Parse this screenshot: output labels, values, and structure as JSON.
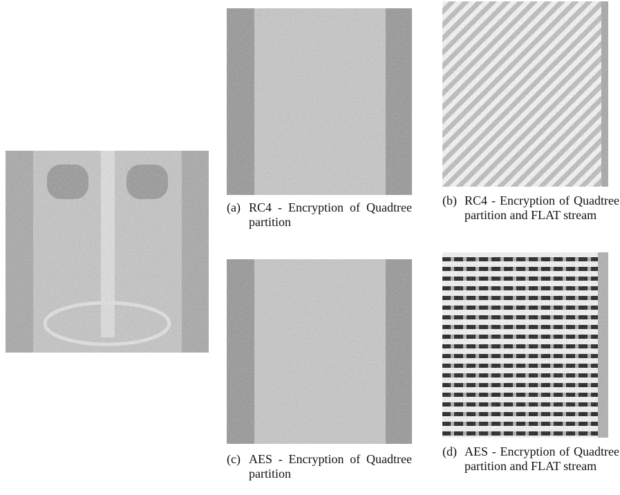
{
  "subfigures": [
    {
      "label": "(a)",
      "caption": "RC4 - Encryption of Quadtree partition"
    },
    {
      "label": "(b)",
      "caption": "RC4 - Encryption of Quadtree partition and FLAT stream"
    },
    {
      "label": "(c)",
      "caption": "AES - Encryption of Quadtree partition"
    },
    {
      "label": "(d)",
      "caption": "AES - Encryption of Quadtree partition and FLAT stream"
    }
  ]
}
